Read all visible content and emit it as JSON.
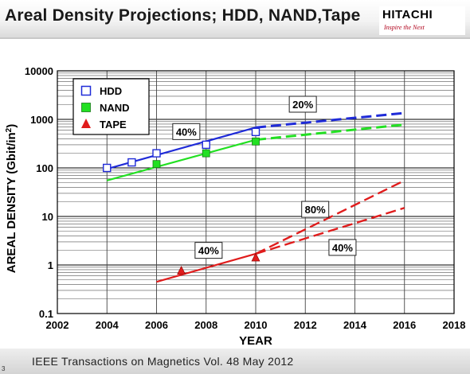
{
  "header": {
    "title": "Areal Density Projections; HDD, NAND,Tape",
    "logo_text": "HITACHI",
    "logo_tagline": "Inspire the Next"
  },
  "footer": {
    "citation": "IEEE Transactions on Magnetics Vol. 48   May 2012",
    "page_number": "3"
  },
  "colors": {
    "hdd": "#1f2bd8",
    "nand": "#22e022",
    "tape": "#e01c1c"
  },
  "chart_data": {
    "type": "line",
    "xlabel": "YEAR",
    "ylabel": "AREAL DENSITY (Gbit/in",
    "ylabel_sup": "2",
    "ylabel_close": ")",
    "xlim": [
      2002,
      2018
    ],
    "ylim": [
      0.1,
      10000
    ],
    "yscale": "log",
    "x_ticks": [
      "2002",
      "2004",
      "2006",
      "2008",
      "2010",
      "2012",
      "2014",
      "2016",
      "2018"
    ],
    "y_ticks": [
      "0.1",
      "1",
      "10",
      "100",
      "1000",
      "10000"
    ],
    "grid": true,
    "legend": {
      "placement": "top-left",
      "entries": [
        {
          "label": "HDD",
          "marker": "square-open",
          "color": "#1f2bd8"
        },
        {
          "label": "NAND",
          "marker": "square-filled",
          "color": "#22e022"
        },
        {
          "label": "TAPE",
          "marker": "triangle",
          "color": "#e01c1c"
        }
      ]
    },
    "series": [
      {
        "name": "HDD",
        "color": "#1f2bd8",
        "marker": "square-open",
        "points": [
          [
            2004,
            100
          ],
          [
            2005,
            130
          ],
          [
            2006,
            200
          ],
          [
            2008,
            300
          ],
          [
            2010,
            550
          ]
        ],
        "trend": [
          [
            2004,
            95
          ],
          [
            2010,
            680
          ]
        ],
        "projection": [
          [
            2010,
            680
          ],
          [
            2016,
            1350
          ]
        ]
      },
      {
        "name": "NAND",
        "color": "#22e022",
        "marker": "square-filled",
        "points": [
          [
            2006,
            120
          ],
          [
            2008,
            200
          ],
          [
            2010,
            350
          ]
        ],
        "trend": [
          [
            2004,
            55
          ],
          [
            2010,
            380
          ]
        ],
        "projection": [
          [
            2010,
            380
          ],
          [
            2016,
            780
          ]
        ]
      },
      {
        "name": "TAPE",
        "color": "#e01c1c",
        "marker": "triangle",
        "points": [
          [
            2007,
            0.75
          ],
          [
            2010,
            1.4
          ]
        ],
        "trend": [
          [
            2006,
            0.45
          ],
          [
            2010,
            1.7
          ]
        ],
        "projection_high": [
          [
            2010,
            1.7
          ],
          [
            2016,
            55
          ]
        ],
        "projection_low": [
          [
            2010,
            1.7
          ],
          [
            2016,
            15
          ]
        ]
      }
    ],
    "annotations": [
      {
        "text": "40%",
        "x": 2007.2,
        "y": 560
      },
      {
        "text": "20%",
        "x": 2011.9,
        "y": 2050
      },
      {
        "text": "80%",
        "x": 2012.4,
        "y": 14
      },
      {
        "text": "40%",
        "x": 2013.5,
        "y": 2.3
      },
      {
        "text": "40%",
        "x": 2008.1,
        "y": 2.0
      }
    ]
  }
}
